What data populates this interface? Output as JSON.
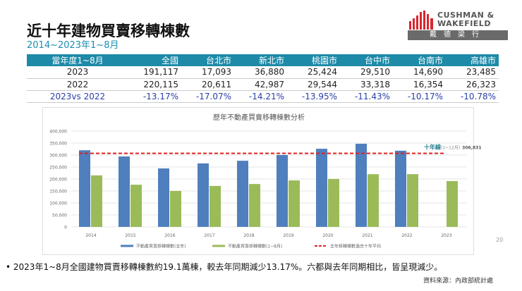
{
  "header": {
    "title": "近十年建物買賣移轉棟數",
    "subtitle": "2014~2023年1~8月"
  },
  "logo": {
    "line1": "CUSHMAN &",
    "line2": "WAKEFIELD",
    "chinese": "戴德梁行",
    "colors": {
      "bars": "#d9262e",
      "band": "#6a6a6a"
    }
  },
  "table": {
    "headers": [
      "當年度1~8月",
      "全國",
      "台北市",
      "新北市",
      "桃園市",
      "台中市",
      "台南市",
      "高雄市"
    ],
    "rows": [
      [
        "2023",
        "191,117",
        "17,093",
        "36,880",
        "25,424",
        "29,510",
        "14,690",
        "23,485"
      ],
      [
        "2022",
        "220,115",
        "20,611",
        "42,987",
        "29,544",
        "33,318",
        "16,354",
        "26,323"
      ],
      [
        "2023vs 2022",
        "-13.17%",
        "-17.07%",
        "-14.21%",
        "-13.95%",
        "-11.43%",
        "-10.17%",
        "-10.78%"
      ]
    ]
  },
  "chart_data": {
    "type": "bar",
    "title": "歷年不動產買賣移轉棟數分析",
    "categories": [
      "2014",
      "2015",
      "2016",
      "2017",
      "2018",
      "2019",
      "2020",
      "2021",
      "2022",
      "2023"
    ],
    "yticks": [
      "0",
      "50,000",
      "100,000",
      "150,000",
      "200,000",
      "250,000",
      "300,000",
      "350,000",
      "400,000"
    ],
    "ylim": [
      0,
      400000
    ],
    "grid": true,
    "legend": "bottom",
    "series": [
      {
        "name": "不動產買賣移轉棟數(全年)",
        "color": "#4f7fbd",
        "values": [
          320000,
          294000,
          244000,
          265000,
          276000,
          300000,
          326000,
          347000,
          318000,
          null
        ]
      },
      {
        "name": "不動產買賣移轉棟數(1~8月)",
        "color": "#9bbb59",
        "values": [
          215000,
          176000,
          150000,
          171000,
          179000,
          194000,
          200000,
          220000,
          220115,
          191117
        ]
      }
    ],
    "reference_line": {
      "name": "全年移轉棟數過去十年平均",
      "value": 306831,
      "color": "#e02020",
      "label_main": "十年線",
      "label_sub": "(1~12月)",
      "label_value": "306,831"
    }
  },
  "page_number": "20",
  "bullet": "2023年1~8月全國建物買賣移轉棟數約19.1萬棟，較去年同期減少13.17%。六都與去年同期相比，皆呈現減少。",
  "source": "資料來源：內政部統計處"
}
